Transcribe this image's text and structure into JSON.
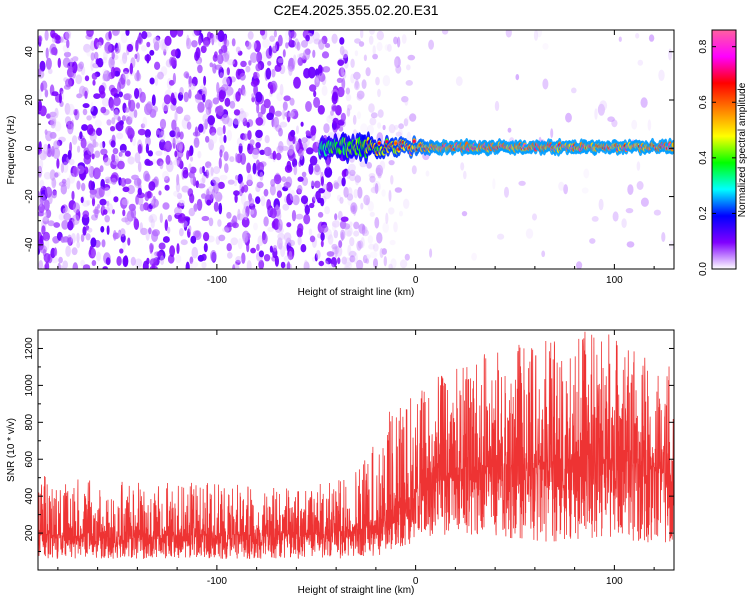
{
  "title": "C2E4.2025.355.02.20.E31",
  "chart_data": [
    {
      "type": "heatmap",
      "title": "C2E4.2025.355.02.20.E31",
      "xlabel": "Height of straight line (km)",
      "ylabel": "Frequency (Hz)",
      "xlim": [
        -190,
        130
      ],
      "ylim": [
        -50,
        49
      ],
      "x_ticks": [
        -100,
        0,
        100
      ],
      "x_tick_labels": [
        "-100",
        "0",
        "100"
      ],
      "y_ticks": [
        -40,
        -20,
        0,
        20,
        40
      ],
      "y_tick_labels": [
        "-40",
        "-20",
        "0",
        "20",
        "40"
      ],
      "colorbar": {
        "label": "Normalized spectral amplitude",
        "range": [
          0,
          0.86
        ],
        "ticks": [
          0,
          0.2,
          0.4,
          0.6,
          0.8
        ],
        "tick_labels": [
          "0.0",
          "0.2",
          "0.4",
          "0.6",
          "0.8"
        ],
        "colors": [
          "#ffffff",
          "#8000ff",
          "#0000ff",
          "#00ffff",
          "#00ff00",
          "#ffff00",
          "#ff8000",
          "#ff0000",
          "#ff00ff",
          "#ff60a0"
        ]
      },
      "features": {
        "noise_region_x": [
          -190,
          -35
        ],
        "noise_amplitude_range": [
          0.02,
          0.12
        ],
        "signal_band_start_x": -48,
        "signal_band_frequency": 0.5,
        "signal_band_peak_amplitude": 0.8
      }
    },
    {
      "type": "line",
      "xlabel": "Height of straight line (km)",
      "ylabel": "SNR (10 * v/v)",
      "xlim": [
        -190,
        130
      ],
      "ylim": [
        0,
        1300
      ],
      "x_ticks": [
        -100,
        0,
        100
      ],
      "x_tick_labels": [
        "-100",
        "0",
        "100"
      ],
      "y_ticks": [
        200,
        400,
        600,
        800,
        1000,
        1200
      ],
      "y_tick_labels": [
        "200",
        "400",
        "600",
        "800",
        "1000",
        "1200"
      ],
      "color": "#ee3333",
      "series": [
        {
          "name": "SNR",
          "envelope": {
            "x": [
              -190,
              -150,
              -100,
              -60,
              -35,
              -25,
              -15,
              0,
              20,
              40,
              60,
              80,
              100,
              120,
              130
            ],
            "mean": [
              190,
              180,
              190,
              195,
              210,
              230,
              300,
              420,
              520,
              560,
              580,
              600,
              600,
              560,
              470
            ],
            "low": [
              60,
              60,
              60,
              60,
              60,
              60,
              90,
              150,
              200,
              180,
              150,
              150,
              150,
              150,
              150
            ],
            "high": [
              520,
              480,
              470,
              450,
              500,
              640,
              860,
              980,
              1100,
              1200,
              1240,
              1300,
              1280,
              1150,
              1100
            ]
          }
        }
      ]
    }
  ]
}
